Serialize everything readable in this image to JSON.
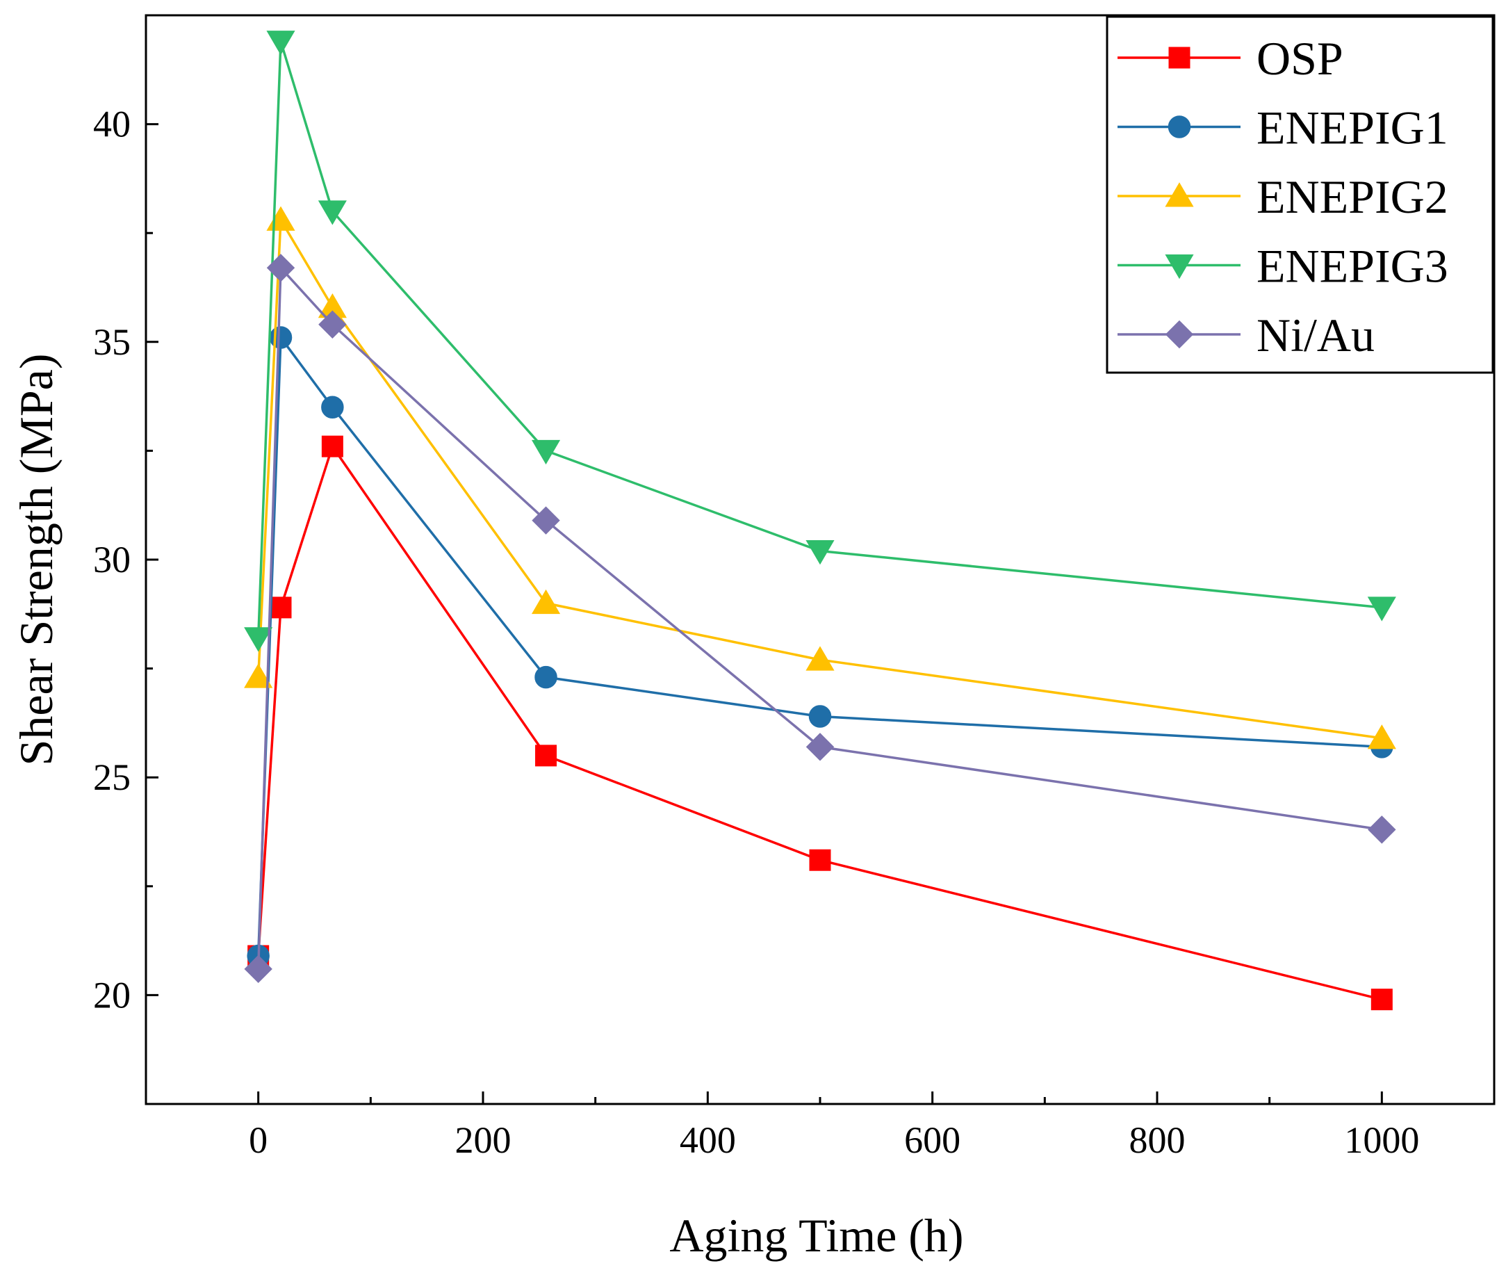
{
  "chart_data": {
    "type": "line",
    "title": "",
    "xlabel": "Aging Time (h)",
    "ylabel": "Shear Strength (MPa)",
    "xlim": [
      -100,
      1100
    ],
    "ylim": [
      17.5,
      42.5
    ],
    "xticks": [
      0,
      200,
      400,
      600,
      800,
      1000
    ],
    "yticks": [
      20,
      25,
      30,
      35,
      40
    ],
    "x_minor_ticks": [
      100,
      300,
      500,
      700,
      900
    ],
    "grid": false,
    "legend_position": "top-right",
    "series": [
      {
        "name": "OSP",
        "color": "#ff0000",
        "marker": "square",
        "x": [
          0,
          20,
          66,
          256,
          500,
          1000
        ],
        "y": [
          20.9,
          28.9,
          32.6,
          25.5,
          23.1,
          19.9
        ]
      },
      {
        "name": "ENEPIG1",
        "color": "#1f6ea8",
        "marker": "circle",
        "x": [
          0,
          20,
          66,
          256,
          500,
          1000
        ],
        "y": [
          20.9,
          35.1,
          33.5,
          27.3,
          26.4,
          25.7
        ]
      },
      {
        "name": "ENEPIG2",
        "color": "#ffc000",
        "marker": "triangle-up",
        "x": [
          0,
          20,
          66,
          256,
          500,
          1000
        ],
        "y": [
          27.3,
          37.8,
          35.8,
          29.0,
          27.7,
          25.9
        ]
      },
      {
        "name": "ENEPIG3",
        "color": "#2ebd6b",
        "marker": "triangle-down",
        "x": [
          0,
          20,
          66,
          256,
          500,
          1000
        ],
        "y": [
          28.2,
          41.9,
          38.0,
          32.5,
          30.2,
          28.9
        ]
      },
      {
        "name": "Ni/Au",
        "color": "#7b72ad",
        "marker": "diamond",
        "x": [
          0,
          20,
          66,
          256,
          500,
          1000
        ],
        "y": [
          20.6,
          36.7,
          35.4,
          30.9,
          25.7,
          23.8
        ]
      }
    ]
  }
}
